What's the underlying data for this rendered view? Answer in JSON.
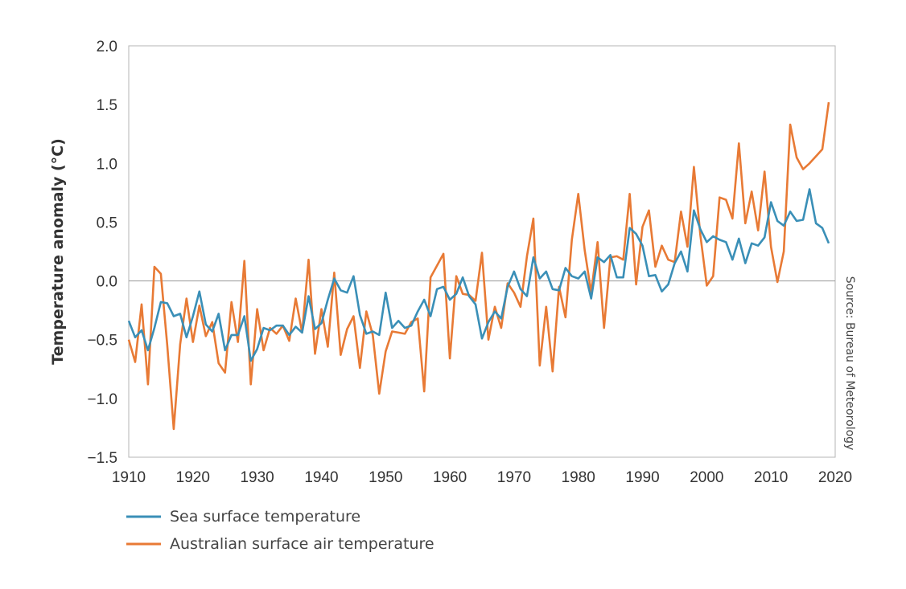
{
  "chart_data": {
    "type": "line",
    "title": "",
    "xlabel": "",
    "ylabel": "Temperature anomaly (°C)",
    "source": "Source: Bureau of Meteorology",
    "xlim": [
      1910,
      2020
    ],
    "ylim": [
      -1.5,
      2.0
    ],
    "x_ticks": [
      1910,
      1920,
      1930,
      1940,
      1950,
      1960,
      1970,
      1980,
      1990,
      2000,
      2010,
      2020
    ],
    "y_ticks": [
      -1.5,
      -1.0,
      -0.5,
      0.0,
      0.5,
      1.0,
      1.5,
      2.0
    ],
    "y_tick_labels": [
      "−1.5",
      "−1.0",
      "−0.5",
      "0.0",
      "0.5",
      "1.0",
      "1.5",
      "2.0"
    ],
    "grid": false,
    "zero_line": true,
    "legend_position": "bottom-left",
    "x_start": 1910,
    "series": [
      {
        "name": "Sea surface temperature",
        "color": "#3a8fb7",
        "values": [
          -0.34,
          -0.48,
          -0.42,
          -0.59,
          -0.4,
          -0.18,
          -0.19,
          -0.3,
          -0.28,
          -0.48,
          -0.3,
          -0.09,
          -0.37,
          -0.43,
          -0.28,
          -0.59,
          -0.46,
          -0.46,
          -0.3,
          -0.68,
          -0.58,
          -0.4,
          -0.42,
          -0.38,
          -0.38,
          -0.46,
          -0.39,
          -0.44,
          -0.13,
          -0.41,
          -0.36,
          -0.16,
          0.02,
          -0.08,
          -0.1,
          0.04,
          -0.29,
          -0.45,
          -0.43,
          -0.46,
          -0.1,
          -0.4,
          -0.34,
          -0.4,
          -0.38,
          -0.26,
          -0.16,
          -0.3,
          -0.07,
          -0.05,
          -0.16,
          -0.11,
          0.03,
          -0.13,
          -0.2,
          -0.49,
          -0.35,
          -0.26,
          -0.32,
          -0.05,
          0.08,
          -0.07,
          -0.13,
          0.2,
          0.02,
          0.08,
          -0.07,
          -0.08,
          0.11,
          0.04,
          0.02,
          0.08,
          -0.15,
          0.2,
          0.16,
          0.22,
          0.03,
          0.03,
          0.45,
          0.4,
          0.3,
          0.04,
          0.05,
          -0.09,
          -0.03,
          0.15,
          0.25,
          0.08,
          0.6,
          0.44,
          0.33,
          0.38,
          0.35,
          0.33,
          0.18,
          0.36,
          0.15,
          0.32,
          0.3,
          0.37,
          0.67,
          0.51,
          0.47,
          0.59,
          0.51,
          0.52,
          0.78,
          0.49,
          0.45,
          0.32
        ]
      },
      {
        "name": "Australian surface air temperature",
        "color": "#e87a35",
        "values": [
          -0.5,
          -0.69,
          -0.2,
          -0.88,
          0.12,
          0.06,
          -0.55,
          -1.26,
          -0.54,
          -0.15,
          -0.52,
          -0.21,
          -0.47,
          -0.35,
          -0.7,
          -0.78,
          -0.18,
          -0.52,
          0.17,
          -0.88,
          -0.24,
          -0.59,
          -0.4,
          -0.45,
          -0.38,
          -0.51,
          -0.15,
          -0.44,
          0.18,
          -0.62,
          -0.24,
          -0.56,
          0.07,
          -0.63,
          -0.41,
          -0.3,
          -0.74,
          -0.26,
          -0.46,
          -0.96,
          -0.6,
          -0.43,
          -0.44,
          -0.45,
          -0.35,
          -0.32,
          -0.94,
          0.03,
          0.13,
          0.23,
          -0.66,
          0.04,
          -0.11,
          -0.12,
          -0.17,
          0.24,
          -0.5,
          -0.22,
          -0.4,
          -0.02,
          -0.1,
          -0.22,
          0.21,
          0.53,
          -0.72,
          -0.22,
          -0.77,
          -0.05,
          -0.31,
          0.35,
          0.74,
          0.26,
          -0.1,
          0.33,
          -0.4,
          0.2,
          0.21,
          0.18,
          0.74,
          -0.03,
          0.46,
          0.6,
          0.12,
          0.3,
          0.18,
          0.16,
          0.59,
          0.29,
          0.97,
          0.39,
          -0.04,
          0.04,
          0.71,
          0.69,
          0.53,
          1.17,
          0.49,
          0.76,
          0.43,
          0.93,
          0.29,
          -0.01,
          0.25,
          1.33,
          1.05,
          0.95,
          1.0,
          1.06,
          1.12,
          1.52
        ]
      }
    ]
  }
}
